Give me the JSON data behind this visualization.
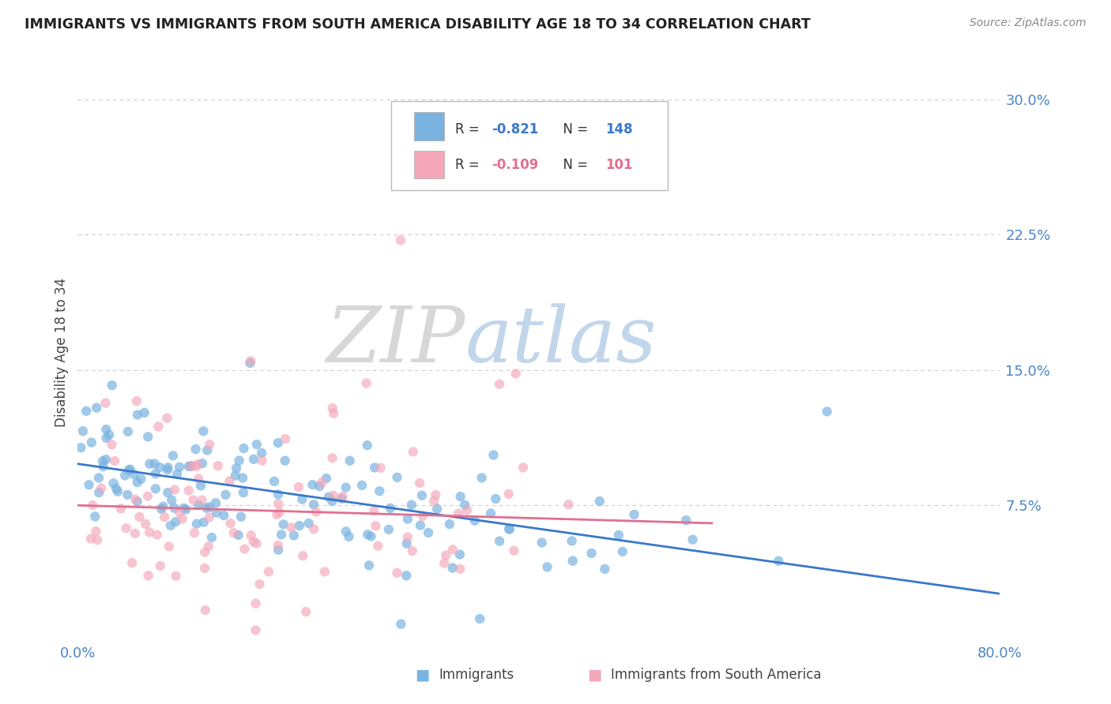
{
  "title": "IMMIGRANTS VS IMMIGRANTS FROM SOUTH AMERICA DISABILITY AGE 18 TO 34 CORRELATION CHART",
  "source_text": "Source: ZipAtlas.com",
  "ylabel": "Disability Age 18 to 34",
  "xlim": [
    0.0,
    0.8
  ],
  "ylim": [
    0.0,
    0.32
  ],
  "yticks": [
    0.075,
    0.15,
    0.225,
    0.3
  ],
  "ytick_labels": [
    "7.5%",
    "15.0%",
    "22.5%",
    "30.0%"
  ],
  "xtick_labels": [
    "0.0%",
    "80.0%"
  ],
  "blue_color": "#7ab3e0",
  "pink_color": "#f4a7b9",
  "blue_line_color": "#3a78c9",
  "pink_line_color": "#e07090",
  "legend_r1": "-0.821",
  "legend_n1": "148",
  "legend_r2": "-0.109",
  "legend_n2": "101",
  "blue_r": -0.821,
  "blue_n": 148,
  "pink_r": -0.109,
  "pink_n": 101,
  "background_color": "#ffffff",
  "grid_color": "#cccccc",
  "title_color": "#222222",
  "tick_label_color": "#4a86c8",
  "watermark_zip_color": "#d0d0d0",
  "watermark_atlas_color": "#b8cfe8"
}
